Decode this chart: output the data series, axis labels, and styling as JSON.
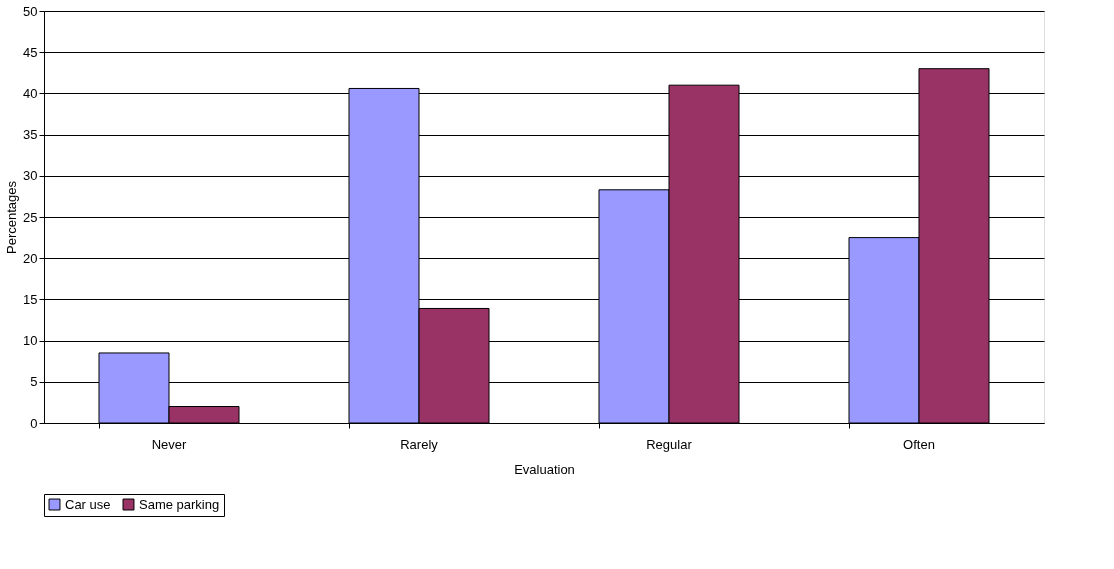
{
  "chart_data": {
    "type": "bar",
    "xlabel": "Evaluation",
    "ylabel": "Percentages",
    "categories": [
      "Never",
      "Rarely",
      "Regular",
      "Often"
    ],
    "series": [
      {
        "name": "Car use",
        "color": "#9999ff",
        "values": [
          8.5,
          40.6,
          28.3,
          22.5
        ]
      },
      {
        "name": "Same parking",
        "color": "#993366",
        "values": [
          2.0,
          13.9,
          41.0,
          43.0
        ]
      }
    ],
    "ylim": [
      0,
      50
    ],
    "yticks": [
      0,
      5,
      10,
      15,
      20,
      25,
      30,
      35,
      40,
      45,
      50
    ],
    "grid": "y",
    "legend": "bottom"
  }
}
